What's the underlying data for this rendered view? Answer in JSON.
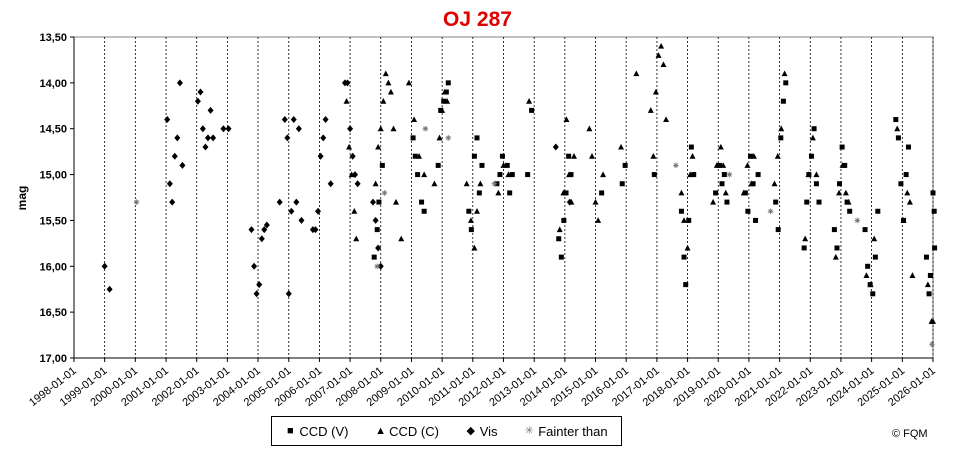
{
  "chart_data": {
    "type": "scatter",
    "title": "OJ 287",
    "title_color": "#e00000",
    "xlabel": "",
    "ylabel": "mag",
    "y_reversed": true,
    "ylim": [
      13.5,
      17.0
    ],
    "yticks": [
      "13,50",
      "14,00",
      "14,50",
      "15,00",
      "15,50",
      "16,00",
      "16,50",
      "17,00"
    ],
    "xlim": [
      "1998-01-01",
      "2026-01-01"
    ],
    "xticks": [
      "1998-01-01",
      "1999-01-01",
      "2000-01-01",
      "2001-01-01",
      "2002-01-01",
      "2003-01-01",
      "2004-01-01",
      "2005-01-01",
      "2006-01-01",
      "2007-01-01",
      "2008-01-01",
      "2009-01-01",
      "2010-01-01",
      "2011-01-01",
      "2012-01-01",
      "2013-01-01",
      "2014-01-01",
      "2015-01-01",
      "2016-01-01",
      "2017-01-01",
      "2018-01-01",
      "2019-01-01",
      "2020-01-01",
      "2021-01-01",
      "2022-01-01",
      "2023-01-01",
      "2024-01-01",
      "2025-01-01",
      "2026-01-01"
    ],
    "grid": {
      "vertical": true,
      "horizontal": false
    },
    "legend_position": "bottom",
    "series": [
      {
        "name": "CCD (V)",
        "marker": "square",
        "points": [
          [
            "2007-10-15",
            15.9
          ],
          [
            "2007-11-20",
            15.6
          ],
          [
            "2007-12-10",
            15.3
          ],
          [
            "2008-01-20",
            14.9
          ],
          [
            "2009-01-20",
            14.6
          ],
          [
            "2009-02-15",
            14.8
          ],
          [
            "2009-03-15",
            15.0
          ],
          [
            "2009-05-01",
            15.3
          ],
          [
            "2009-06-01",
            15.4
          ],
          [
            "2009-11-15",
            14.9
          ],
          [
            "2009-12-15",
            14.3
          ],
          [
            "2010-01-20",
            14.2
          ],
          [
            "2010-02-20",
            14.1
          ],
          [
            "2010-03-15",
            14.0
          ],
          [
            "2010-11-15",
            15.4
          ],
          [
            "2010-12-15",
            15.6
          ],
          [
            "2011-01-20",
            14.8
          ],
          [
            "2011-02-20",
            14.6
          ],
          [
            "2011-03-20",
            15.2
          ],
          [
            "2011-04-20",
            14.9
          ],
          [
            "2011-10-15",
            15.1
          ],
          [
            "2011-11-20",
            15.0
          ],
          [
            "2011-12-20",
            14.8
          ],
          [
            "2012-02-15",
            14.9
          ],
          [
            "2012-03-15",
            15.2
          ],
          [
            "2012-04-15",
            15.0
          ],
          [
            "2012-10-15",
            15.0
          ],
          [
            "2012-12-01",
            14.3
          ],
          [
            "2013-10-20",
            15.7
          ],
          [
            "2013-11-20",
            15.9
          ],
          [
            "2013-12-20",
            15.5
          ],
          [
            "2014-01-15",
            15.2
          ],
          [
            "2014-02-15",
            14.8
          ],
          [
            "2014-03-15",
            15.0
          ],
          [
            "2015-03-15",
            15.2
          ],
          [
            "2015-11-15",
            15.1
          ],
          [
            "2015-12-20",
            14.9
          ],
          [
            "2016-12-01",
            15.0
          ],
          [
            "2017-10-20",
            15.4
          ],
          [
            "2017-11-20",
            15.9
          ],
          [
            "2017-12-10",
            16.2
          ],
          [
            "2018-01-15",
            15.5
          ],
          [
            "2018-02-15",
            14.7
          ],
          [
            "2018-03-15",
            15.0
          ],
          [
            "2018-12-01",
            15.2
          ],
          [
            "2019-01-15",
            14.9
          ],
          [
            "2019-02-15",
            15.1
          ],
          [
            "2019-03-15",
            15.0
          ],
          [
            "2019-04-15",
            15.3
          ],
          [
            "2019-11-20",
            15.2
          ],
          [
            "2019-12-20",
            15.4
          ],
          [
            "2020-01-20",
            14.8
          ],
          [
            "2020-02-20",
            15.1
          ],
          [
            "2020-03-20",
            15.5
          ],
          [
            "2020-04-20",
            15.0
          ],
          [
            "2020-11-15",
            15.3
          ],
          [
            "2020-12-15",
            15.6
          ],
          [
            "2021-01-15",
            14.6
          ],
          [
            "2021-02-15",
            14.2
          ],
          [
            "2021-03-15",
            14.0
          ],
          [
            "2021-10-20",
            15.8
          ],
          [
            "2021-11-20",
            15.3
          ],
          [
            "2021-12-15",
            15.0
          ],
          [
            "2022-01-15",
            14.8
          ],
          [
            "2022-02-15",
            14.5
          ],
          [
            "2022-03-15",
            15.1
          ],
          [
            "2022-04-15",
            15.3
          ],
          [
            "2022-10-15",
            15.6
          ],
          [
            "2022-11-15",
            15.8
          ],
          [
            "2022-12-15",
            15.1
          ],
          [
            "2023-01-15",
            14.7
          ],
          [
            "2023-02-15",
            14.9
          ],
          [
            "2023-03-15",
            15.3
          ],
          [
            "2023-04-15",
            15.4
          ],
          [
            "2023-10-15",
            15.6
          ],
          [
            "2023-11-15",
            16.0
          ],
          [
            "2023-12-15",
            16.2
          ],
          [
            "2024-01-15",
            16.3
          ],
          [
            "2024-02-15",
            15.9
          ],
          [
            "2024-03-15",
            15.4
          ],
          [
            "2024-10-15",
            14.4
          ],
          [
            "2024-11-15",
            14.6
          ],
          [
            "2024-12-15",
            15.1
          ],
          [
            "2025-01-15",
            15.5
          ],
          [
            "2025-02-15",
            15.0
          ],
          [
            "2025-03-15",
            14.7
          ],
          [
            "2025-10-15",
            15.9
          ],
          [
            "2025-11-15",
            16.3
          ],
          [
            "2025-12-01",
            16.1
          ],
          [
            "2026-01-01",
            15.2
          ],
          [
            "2026-01-15",
            15.4
          ],
          [
            "2026-01-20",
            15.8
          ]
        ]
      },
      {
        "name": "CCD (C)",
        "marker": "triangle",
        "points": [
          [
            "2006-11-20",
            14.2
          ],
          [
            "2006-12-20",
            14.7
          ],
          [
            "2007-01-20",
            15.0
          ],
          [
            "2007-02-20",
            15.4
          ],
          [
            "2007-03-15",
            15.7
          ],
          [
            "2007-11-01",
            15.1
          ],
          [
            "2007-12-01",
            14.7
          ],
          [
            "2008-01-01",
            14.5
          ],
          [
            "2008-02-01",
            14.2
          ],
          [
            "2008-03-01",
            13.9
          ],
          [
            "2008-04-01",
            14.0
          ],
          [
            "2008-05-01",
            14.1
          ],
          [
            "2008-06-01",
            14.5
          ],
          [
            "2008-07-01",
            15.3
          ],
          [
            "2008-09-01",
            15.7
          ],
          [
            "2008-12-01",
            14.0
          ],
          [
            "2009-02-01",
            14.4
          ],
          [
            "2009-04-01",
            14.8
          ],
          [
            "2009-06-01",
            15.0
          ],
          [
            "2009-10-01",
            15.1
          ],
          [
            "2009-12-01",
            14.6
          ],
          [
            "2010-01-01",
            14.3
          ],
          [
            "2010-02-01",
            14.1
          ],
          [
            "2010-03-01",
            14.2
          ],
          [
            "2010-10-20",
            15.1
          ],
          [
            "2010-12-10",
            15.5
          ],
          [
            "2011-01-20",
            15.8
          ],
          [
            "2011-02-20",
            15.4
          ],
          [
            "2011-04-01",
            15.1
          ],
          [
            "2011-11-01",
            15.2
          ],
          [
            "2012-01-01",
            14.9
          ],
          [
            "2012-03-01",
            15.0
          ],
          [
            "2012-11-01",
            14.2
          ],
          [
            "2013-11-01",
            15.6
          ],
          [
            "2013-12-15",
            15.2
          ],
          [
            "2014-01-20",
            14.4
          ],
          [
            "2014-02-20",
            15.0
          ],
          [
            "2014-03-20",
            15.3
          ],
          [
            "2014-04-20",
            14.8
          ],
          [
            "2014-10-20",
            14.5
          ],
          [
            "2014-11-20",
            14.8
          ],
          [
            "2015-01-01",
            15.3
          ],
          [
            "2015-02-01",
            15.5
          ],
          [
            "2015-04-01",
            15.0
          ],
          [
            "2015-11-01",
            14.7
          ],
          [
            "2016-05-01",
            13.9
          ],
          [
            "2016-10-20",
            14.3
          ],
          [
            "2016-11-20",
            14.8
          ],
          [
            "2016-12-20",
            14.1
          ],
          [
            "2017-01-20",
            13.7
          ],
          [
            "2017-02-20",
            13.6
          ],
          [
            "2017-03-20",
            13.8
          ],
          [
            "2017-04-20",
            14.4
          ],
          [
            "2017-10-20",
            15.2
          ],
          [
            "2017-11-20",
            15.5
          ],
          [
            "2018-01-01",
            15.8
          ],
          [
            "2018-02-01",
            15.0
          ],
          [
            "2018-03-01",
            14.8
          ],
          [
            "2018-11-01",
            15.3
          ],
          [
            "2018-12-15",
            14.9
          ],
          [
            "2019-02-01",
            14.7
          ],
          [
            "2019-03-01",
            14.9
          ],
          [
            "2019-04-01",
            15.2
          ],
          [
            "2019-11-01",
            15.2
          ],
          [
            "2019-12-15",
            14.9
          ],
          [
            "2020-02-01",
            15.1
          ],
          [
            "2020-03-01",
            14.8
          ],
          [
            "2020-11-01",
            15.1
          ],
          [
            "2020-12-10",
            14.8
          ],
          [
            "2021-01-20",
            14.5
          ],
          [
            "2021-03-01",
            13.9
          ],
          [
            "2021-11-01",
            15.7
          ],
          [
            "2021-12-10",
            15.0
          ],
          [
            "2022-02-01",
            14.6
          ],
          [
            "2022-03-15",
            15.0
          ],
          [
            "2022-11-01",
            15.9
          ],
          [
            "2022-12-10",
            15.2
          ],
          [
            "2023-01-20",
            14.9
          ],
          [
            "2023-03-01",
            15.2
          ],
          [
            "2023-04-01",
            15.3
          ],
          [
            "2023-11-01",
            16.1
          ],
          [
            "2023-12-20",
            16.2
          ],
          [
            "2024-02-01",
            15.7
          ],
          [
            "2024-11-01",
            14.5
          ],
          [
            "2025-01-15",
            15.5
          ],
          [
            "2025-03-01",
            15.2
          ],
          [
            "2025-04-01",
            15.3
          ],
          [
            "2025-05-01",
            16.1
          ],
          [
            "2025-11-01",
            16.2
          ],
          [
            "2025-12-15",
            16.6
          ],
          [
            "2026-01-01",
            16.6
          ]
        ]
      },
      {
        "name": "Vis",
        "marker": "diamond",
        "points": [
          [
            "1999-01-01",
            16.0
          ],
          [
            "1999-03-01",
            16.25
          ],
          [
            "2001-01-15",
            14.4
          ],
          [
            "2001-02-15",
            15.1
          ],
          [
            "2001-03-15",
            15.3
          ],
          [
            "2001-04-15",
            14.8
          ],
          [
            "2001-05-15",
            14.6
          ],
          [
            "2001-06-15",
            14.0
          ],
          [
            "2001-07-15",
            14.9
          ],
          [
            "2002-01-15",
            14.2
          ],
          [
            "2002-02-15",
            14.1
          ],
          [
            "2002-03-15",
            14.5
          ],
          [
            "2002-04-15",
            14.7
          ],
          [
            "2002-05-15",
            14.6
          ],
          [
            "2002-06-15",
            14.3
          ],
          [
            "2002-07-15",
            14.6
          ],
          [
            "2002-11-15",
            14.5
          ],
          [
            "2003-01-15",
            14.5
          ],
          [
            "2003-10-15",
            15.6
          ],
          [
            "2003-11-15",
            16.0
          ],
          [
            "2003-12-15",
            16.3
          ],
          [
            "2004-01-15",
            16.2
          ],
          [
            "2004-02-15",
            15.7
          ],
          [
            "2004-03-15",
            15.6
          ],
          [
            "2004-04-15",
            15.55
          ],
          [
            "2004-09-15",
            15.3
          ],
          [
            "2004-11-15",
            14.4
          ],
          [
            "2004-12-15",
            14.6
          ],
          [
            "2005-01-01",
            16.3
          ],
          [
            "2005-02-01",
            15.4
          ],
          [
            "2005-03-01",
            14.4
          ],
          [
            "2005-04-01",
            15.3
          ],
          [
            "2005-05-01",
            14.5
          ],
          [
            "2005-06-01",
            15.5
          ],
          [
            "2005-10-15",
            15.6
          ],
          [
            "2005-11-15",
            15.6
          ],
          [
            "2005-12-15",
            15.4
          ],
          [
            "2006-01-15",
            14.8
          ],
          [
            "2006-02-15",
            14.6
          ],
          [
            "2006-03-15",
            14.4
          ],
          [
            "2006-05-15",
            15.1
          ],
          [
            "2006-11-01",
            14.0
          ],
          [
            "2006-12-01",
            14.0
          ],
          [
            "2007-01-01",
            14.5
          ],
          [
            "2007-02-01",
            14.8
          ],
          [
            "2007-03-01",
            15.0
          ],
          [
            "2007-04-01",
            15.1
          ],
          [
            "2007-10-01",
            15.3
          ],
          [
            "2007-11-01",
            15.5
          ],
          [
            "2007-12-01",
            15.8
          ],
          [
            "2008-01-01",
            16.0
          ],
          [
            "2013-09-15",
            14.7
          ],
          [
            "2014-03-01",
            15.3
          ]
        ]
      },
      {
        "name": "Fainter than",
        "marker": "asterisk",
        "points": [
          [
            "2000-01-15",
            15.3
          ],
          [
            "2007-11-20",
            16.0
          ],
          [
            "2008-02-15",
            15.2
          ],
          [
            "2009-06-15",
            14.5
          ],
          [
            "2010-03-15",
            14.6
          ],
          [
            "2011-09-15",
            15.1
          ],
          [
            "2017-08-15",
            14.9
          ],
          [
            "2019-05-15",
            15.0
          ],
          [
            "2020-09-15",
            15.4
          ],
          [
            "2023-07-15",
            15.5
          ],
          [
            "2025-12-20",
            16.85
          ]
        ]
      }
    ]
  },
  "copyright": "© FQM"
}
